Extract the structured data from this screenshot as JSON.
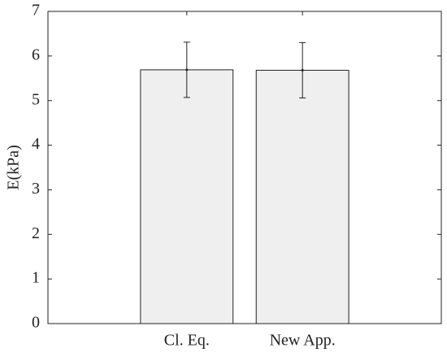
{
  "chart_data": {
    "type": "bar",
    "ylabel": "E(kPa)",
    "categories": [
      "Cl. Eq.",
      "New App."
    ],
    "values": [
      5.69,
      5.68
    ],
    "errors": [
      0.62,
      0.62
    ],
    "color": "#efefef",
    "ylim": [
      0,
      7
    ],
    "yticks": [
      0,
      1,
      2,
      3,
      4,
      5,
      6,
      7
    ]
  }
}
